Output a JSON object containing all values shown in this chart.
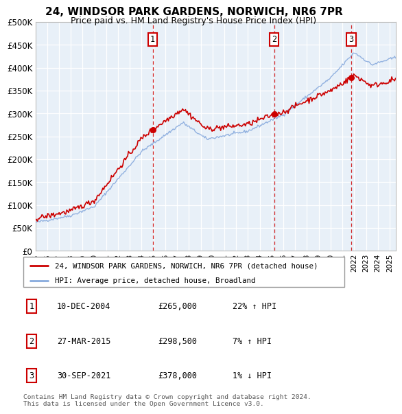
{
  "title": "24, WINDSOR PARK GARDENS, NORWICH, NR6 7PR",
  "subtitle": "Price paid vs. HM Land Registry's House Price Index (HPI)",
  "plot_bg_color": "#e8f0f8",
  "fig_bg_color": "#ffffff",
  "ylabel_ticks": [
    "£0",
    "£50K",
    "£100K",
    "£150K",
    "£200K",
    "£250K",
    "£300K",
    "£350K",
    "£400K",
    "£450K",
    "£500K"
  ],
  "ytick_values": [
    0,
    50000,
    100000,
    150000,
    200000,
    250000,
    300000,
    350000,
    400000,
    450000,
    500000
  ],
  "xlim_start": 1995.0,
  "xlim_end": 2025.5,
  "ylim_min": 0,
  "ylim_max": 500000,
  "sale_dates": [
    2004.94,
    2015.24,
    2021.75
  ],
  "sale_prices": [
    265000,
    298500,
    378000
  ],
  "sale_labels": [
    "1",
    "2",
    "3"
  ],
  "sale_info": [
    {
      "label": "1",
      "date": "10-DEC-2004",
      "price": "£265,000",
      "pct": "22%",
      "dir": "↑",
      "vs": "HPI"
    },
    {
      "label": "2",
      "date": "27-MAR-2015",
      "price": "£298,500",
      "pct": "7%",
      "dir": "↑",
      "vs": "HPI"
    },
    {
      "label": "3",
      "date": "30-SEP-2021",
      "price": "£378,000",
      "pct": "1%",
      "dir": "↓",
      "vs": "HPI"
    }
  ],
  "legend_line1": "24, WINDSOR PARK GARDENS, NORWICH, NR6 7PR (detached house)",
  "legend_line2": "HPI: Average price, detached house, Broadland",
  "footer": "Contains HM Land Registry data © Crown copyright and database right 2024.\nThis data is licensed under the Open Government Licence v3.0.",
  "hpi_color": "#88aadd",
  "prop_color": "#cc0000",
  "vline_color": "#cc0000",
  "grid_color": "#ffffff",
  "label_box_color": "#cc0000"
}
